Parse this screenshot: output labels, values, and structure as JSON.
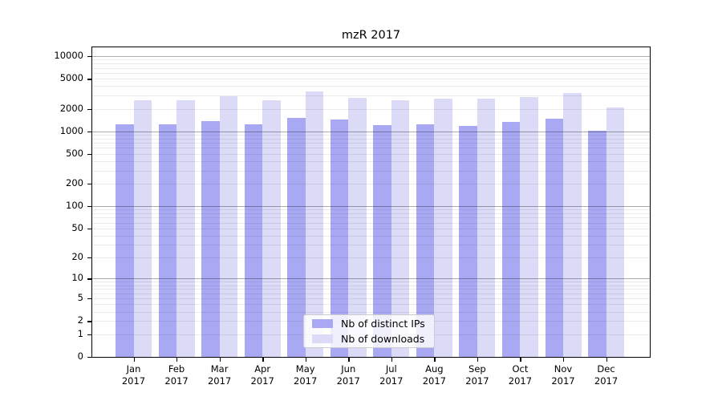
{
  "title": "mzR 2017",
  "chart_data": {
    "type": "bar",
    "title": "mzR 2017",
    "categories": [
      "Jan",
      "Feb",
      "Mar",
      "Apr",
      "May",
      "Jun",
      "Jul",
      "Aug",
      "Sep",
      "Oct",
      "Nov",
      "Dec"
    ],
    "year": "2017",
    "series": [
      {
        "name": "Nb of distinct IPs",
        "color": "#a9a9f3",
        "values": [
          1240,
          1250,
          1360,
          1230,
          1490,
          1440,
          1220,
          1250,
          1170,
          1320,
          1480,
          1010
        ]
      },
      {
        "name": "Nb of downloads",
        "color": "#dbdbf8",
        "values": [
          2560,
          2610,
          2960,
          2560,
          3430,
          2800,
          2610,
          2700,
          2730,
          2850,
          3210,
          2080
        ]
      }
    ],
    "yscale": "log(1+x)",
    "yticks": [
      0,
      1,
      2,
      5,
      10,
      20,
      50,
      100,
      200,
      500,
      1000,
      2000,
      5000,
      10000
    ],
    "ylim": [
      0,
      12000
    ],
    "grid": "horizontal minor log gridlines, darker lines at decades",
    "legend_position": "inside bottom-center",
    "xlabel": "",
    "ylabel": ""
  },
  "legend": {
    "items": [
      {
        "label": "Nb of distinct IPs",
        "color": "#a9a9f3"
      },
      {
        "label": "Nb of downloads",
        "color": "#dbdbf8"
      }
    ]
  }
}
